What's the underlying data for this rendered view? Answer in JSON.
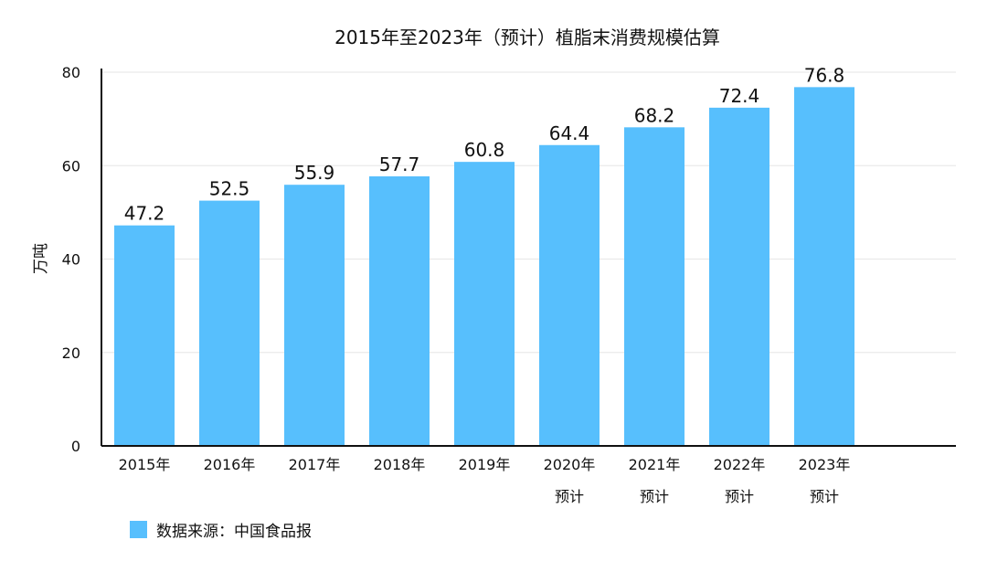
{
  "colors": {
    "bar": "#57BFFD",
    "axis": "#111111",
    "grid": "#e6e6e6"
  },
  "chart_data": {
    "type": "bar",
    "title": "2015年至2023年（预计）植脂末消费规模估算",
    "xlabel": "",
    "ylabel": "万吨",
    "ylim": [
      0,
      80
    ],
    "yticks": [
      0,
      20,
      40,
      60,
      80
    ],
    "grid": true,
    "categories": [
      [
        "2015年"
      ],
      [
        "2016年"
      ],
      [
        "2017年"
      ],
      [
        "2018年"
      ],
      [
        "2019年"
      ],
      [
        "2020年",
        "预计"
      ],
      [
        "2021年",
        "预计"
      ],
      [
        "2022年",
        "预计"
      ],
      [
        "2023年",
        "预计"
      ]
    ],
    "values": [
      47.2,
      52.5,
      55.9,
      57.7,
      60.8,
      64.4,
      68.2,
      72.4,
      76.8
    ],
    "value_labels": [
      "47.2",
      "52.5",
      "55.9",
      "57.7",
      "60.8",
      "64.4",
      "68.2",
      "72.4",
      "76.8"
    ],
    "legend_position": "bottom-left"
  },
  "legend": {
    "label": "数据来源：中国食品报"
  }
}
